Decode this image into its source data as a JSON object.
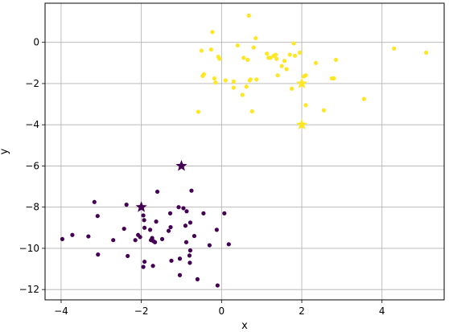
{
  "chart_data": {
    "type": "scatter",
    "title": "",
    "xlabel": "x",
    "ylabel": "y",
    "xlim": [
      -4.4,
      5.55
    ],
    "ylim": [
      -12.5,
      1.9
    ],
    "x_ticks": [
      -4,
      -2,
      0,
      2,
      4
    ],
    "y_ticks": [
      0,
      -2,
      -4,
      -6,
      -8,
      -10,
      -12
    ],
    "x_tick_labels": [
      "−4",
      "−2",
      "0",
      "2",
      "4"
    ],
    "y_tick_labels": [
      "0",
      "−2",
      "−4",
      "−6",
      "−8",
      "−10",
      "−12"
    ],
    "grid": true,
    "legend": "none",
    "series": [
      {
        "color": "#440154",
        "marker": "circle",
        "points": [
          [
            -3.97,
            -9.55
          ],
          [
            -3.72,
            -9.35
          ],
          [
            -3.32,
            -9.42
          ],
          [
            -3.17,
            -7.75
          ],
          [
            -3.09,
            -8.43
          ],
          [
            -3.08,
            -10.3
          ],
          [
            -2.7,
            -9.6
          ],
          [
            -2.43,
            -9.05
          ],
          [
            -2.37,
            -7.88
          ],
          [
            -2.34,
            -10.37
          ],
          [
            -2.15,
            -9.6
          ],
          [
            -2.08,
            -9.35
          ],
          [
            -2.03,
            -9.45
          ],
          [
            -1.95,
            -8.4
          ],
          [
            -1.93,
            -8.63
          ],
          [
            -1.92,
            -9.0
          ],
          [
            -1.95,
            -10.9
          ],
          [
            -1.92,
            -10.65
          ],
          [
            -1.78,
            -9.1
          ],
          [
            -1.76,
            -9.6
          ],
          [
            -1.73,
            -9.5
          ],
          [
            -1.71,
            -10.85
          ],
          [
            -1.7,
            -9.65
          ],
          [
            -1.66,
            -9.7
          ],
          [
            -1.63,
            -8.7
          ],
          [
            -1.6,
            -7.25
          ],
          [
            -1.48,
            -9.55
          ],
          [
            -1.32,
            -9.15
          ],
          [
            -1.28,
            -8.3
          ],
          [
            -1.27,
            -8.97
          ],
          [
            -1.25,
            -10.6
          ],
          [
            -1.07,
            -8.0
          ],
          [
            -1.04,
            -10.5
          ],
          [
            -1.04,
            -11.3
          ],
          [
            -0.95,
            -8.05
          ],
          [
            -0.9,
            -8.9
          ],
          [
            -0.88,
            -9.7
          ],
          [
            -0.87,
            -8.2
          ],
          [
            -0.8,
            -10.35
          ],
          [
            -0.79,
            -10.7
          ],
          [
            -0.78,
            -10.1
          ],
          [
            -0.78,
            -8.75
          ],
          [
            -0.75,
            -7.2
          ],
          [
            -0.68,
            -9.4
          ],
          [
            -0.6,
            -11.5
          ],
          [
            -0.45,
            -8.3
          ],
          [
            -0.3,
            -9.85
          ],
          [
            -0.12,
            -9.1
          ],
          [
            -0.1,
            -11.8
          ],
          [
            0.07,
            -8.3
          ],
          [
            0.18,
            -9.8
          ]
        ],
        "centroids": [
          [
            -2.0,
            -8.0
          ],
          [
            -1.0,
            -6.0
          ]
        ]
      },
      {
        "color": "#fde725",
        "marker": "circle",
        "points": [
          [
            -0.58,
            -3.37
          ],
          [
            -0.5,
            -0.4
          ],
          [
            -0.47,
            -1.63
          ],
          [
            -0.44,
            -1.55
          ],
          [
            -0.26,
            -0.35
          ],
          [
            -0.23,
            0.5
          ],
          [
            -0.18,
            -1.75
          ],
          [
            -0.15,
            -1.95
          ],
          [
            -0.08,
            -0.7
          ],
          [
            -0.05,
            -0.8
          ],
          [
            0.1,
            -1.85
          ],
          [
            0.3,
            -1.9
          ],
          [
            0.3,
            -2.2
          ],
          [
            0.4,
            -0.15
          ],
          [
            0.52,
            -2.55
          ],
          [
            0.55,
            -0.75
          ],
          [
            0.62,
            -2.15
          ],
          [
            0.65,
            -0.85
          ],
          [
            0.68,
            1.3
          ],
          [
            0.7,
            -1.85
          ],
          [
            0.72,
            -1.8
          ],
          [
            0.76,
            -3.35
          ],
          [
            0.8,
            -0.25
          ],
          [
            0.85,
            0.2
          ],
          [
            0.87,
            -1.8
          ],
          [
            1.13,
            -0.55
          ],
          [
            1.17,
            -0.75
          ],
          [
            1.22,
            -0.75
          ],
          [
            1.3,
            -0.65
          ],
          [
            1.35,
            -0.6
          ],
          [
            1.37,
            -0.8
          ],
          [
            1.4,
            -1.6
          ],
          [
            1.5,
            -1.15
          ],
          [
            1.57,
            -0.9
          ],
          [
            1.62,
            -1.3
          ],
          [
            1.7,
            -0.6
          ],
          [
            1.75,
            -2.25
          ],
          [
            1.8,
            -0.05
          ],
          [
            1.83,
            -0.65
          ],
          [
            1.95,
            -0.5
          ],
          [
            2.05,
            -1.65
          ],
          [
            2.1,
            -1.6
          ],
          [
            2.1,
            -3.05
          ],
          [
            2.35,
            -1.0
          ],
          [
            2.55,
            -3.3
          ],
          [
            2.75,
            -1.75
          ],
          [
            2.8,
            -1.75
          ],
          [
            2.85,
            -0.85
          ],
          [
            3.55,
            -2.75
          ],
          [
            4.3,
            -0.3
          ],
          [
            5.1,
            -0.5
          ]
        ],
        "centroids": [
          [
            2.0,
            -2.0
          ],
          [
            2.0,
            -4.0
          ]
        ]
      }
    ]
  }
}
